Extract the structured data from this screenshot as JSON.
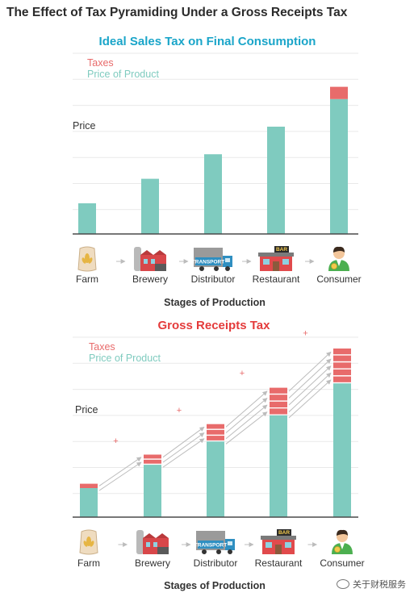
{
  "title": "The Effect of Tax Pyramiding Under a Gross Receipts Tax",
  "watermark": "关于财税服务",
  "colors": {
    "tax": "#e86b6b",
    "price": "#7fcbbf",
    "title_teal": "#1aa5c9",
    "title_red": "#e43b3b",
    "grid": "#e9e9e9",
    "axis": "#4a4a4a",
    "arrow": "#bcbcbc",
    "text": "#333333"
  },
  "chart_data": [
    {
      "type": "bar",
      "stacked": true,
      "title": "Ideal Sales Tax on Final Consumption",
      "ylabel": "Price",
      "xlabel": "Stages of Production",
      "categories": [
        "Farm",
        "Brewery",
        "Distributor",
        "Restaurant",
        "Consumer"
      ],
      "category_icons": [
        "wheat-sack-icon",
        "brewery-icon",
        "transport-truck-icon",
        "restaurant-bar-icon",
        "consumer-person-icon"
      ],
      "series": [
        {
          "name": "Price of Product",
          "values": [
            1.0,
            1.8,
            2.6,
            3.5,
            4.4
          ]
        },
        {
          "name": "Taxes",
          "values": [
            0,
            0,
            0,
            0,
            0.4
          ]
        }
      ],
      "tax_layers": [
        0,
        0,
        0,
        0,
        1
      ],
      "ylim": [
        0,
        5.0
      ],
      "grid": true,
      "legend": "top-left",
      "pyramiding_arrows": false
    },
    {
      "type": "bar",
      "stacked": true,
      "title": "Gross Receipts Tax",
      "ylabel": "Price",
      "xlabel": "Stages of Production",
      "categories": [
        "Farm",
        "Brewery",
        "Distributor",
        "Restaurant",
        "Consumer"
      ],
      "category_icons": [
        "wheat-sack-icon",
        "brewery-icon",
        "transport-truck-icon",
        "restaurant-bar-icon",
        "consumer-person-icon"
      ],
      "series": [
        {
          "name": "Price of Product",
          "values": [
            1.0,
            1.8,
            2.6,
            3.5,
            4.6
          ]
        },
        {
          "name": "Taxes",
          "values": [
            0.15,
            0.35,
            0.6,
            0.95,
            1.2
          ]
        }
      ],
      "tax_layers": [
        1,
        2,
        3,
        4,
        5
      ],
      "plus_markers": [
        "+",
        "+",
        "+",
        "+"
      ],
      "ylim": [
        0,
        5.8
      ],
      "grid": true,
      "legend": "top-left",
      "pyramiding_arrows": true
    }
  ]
}
